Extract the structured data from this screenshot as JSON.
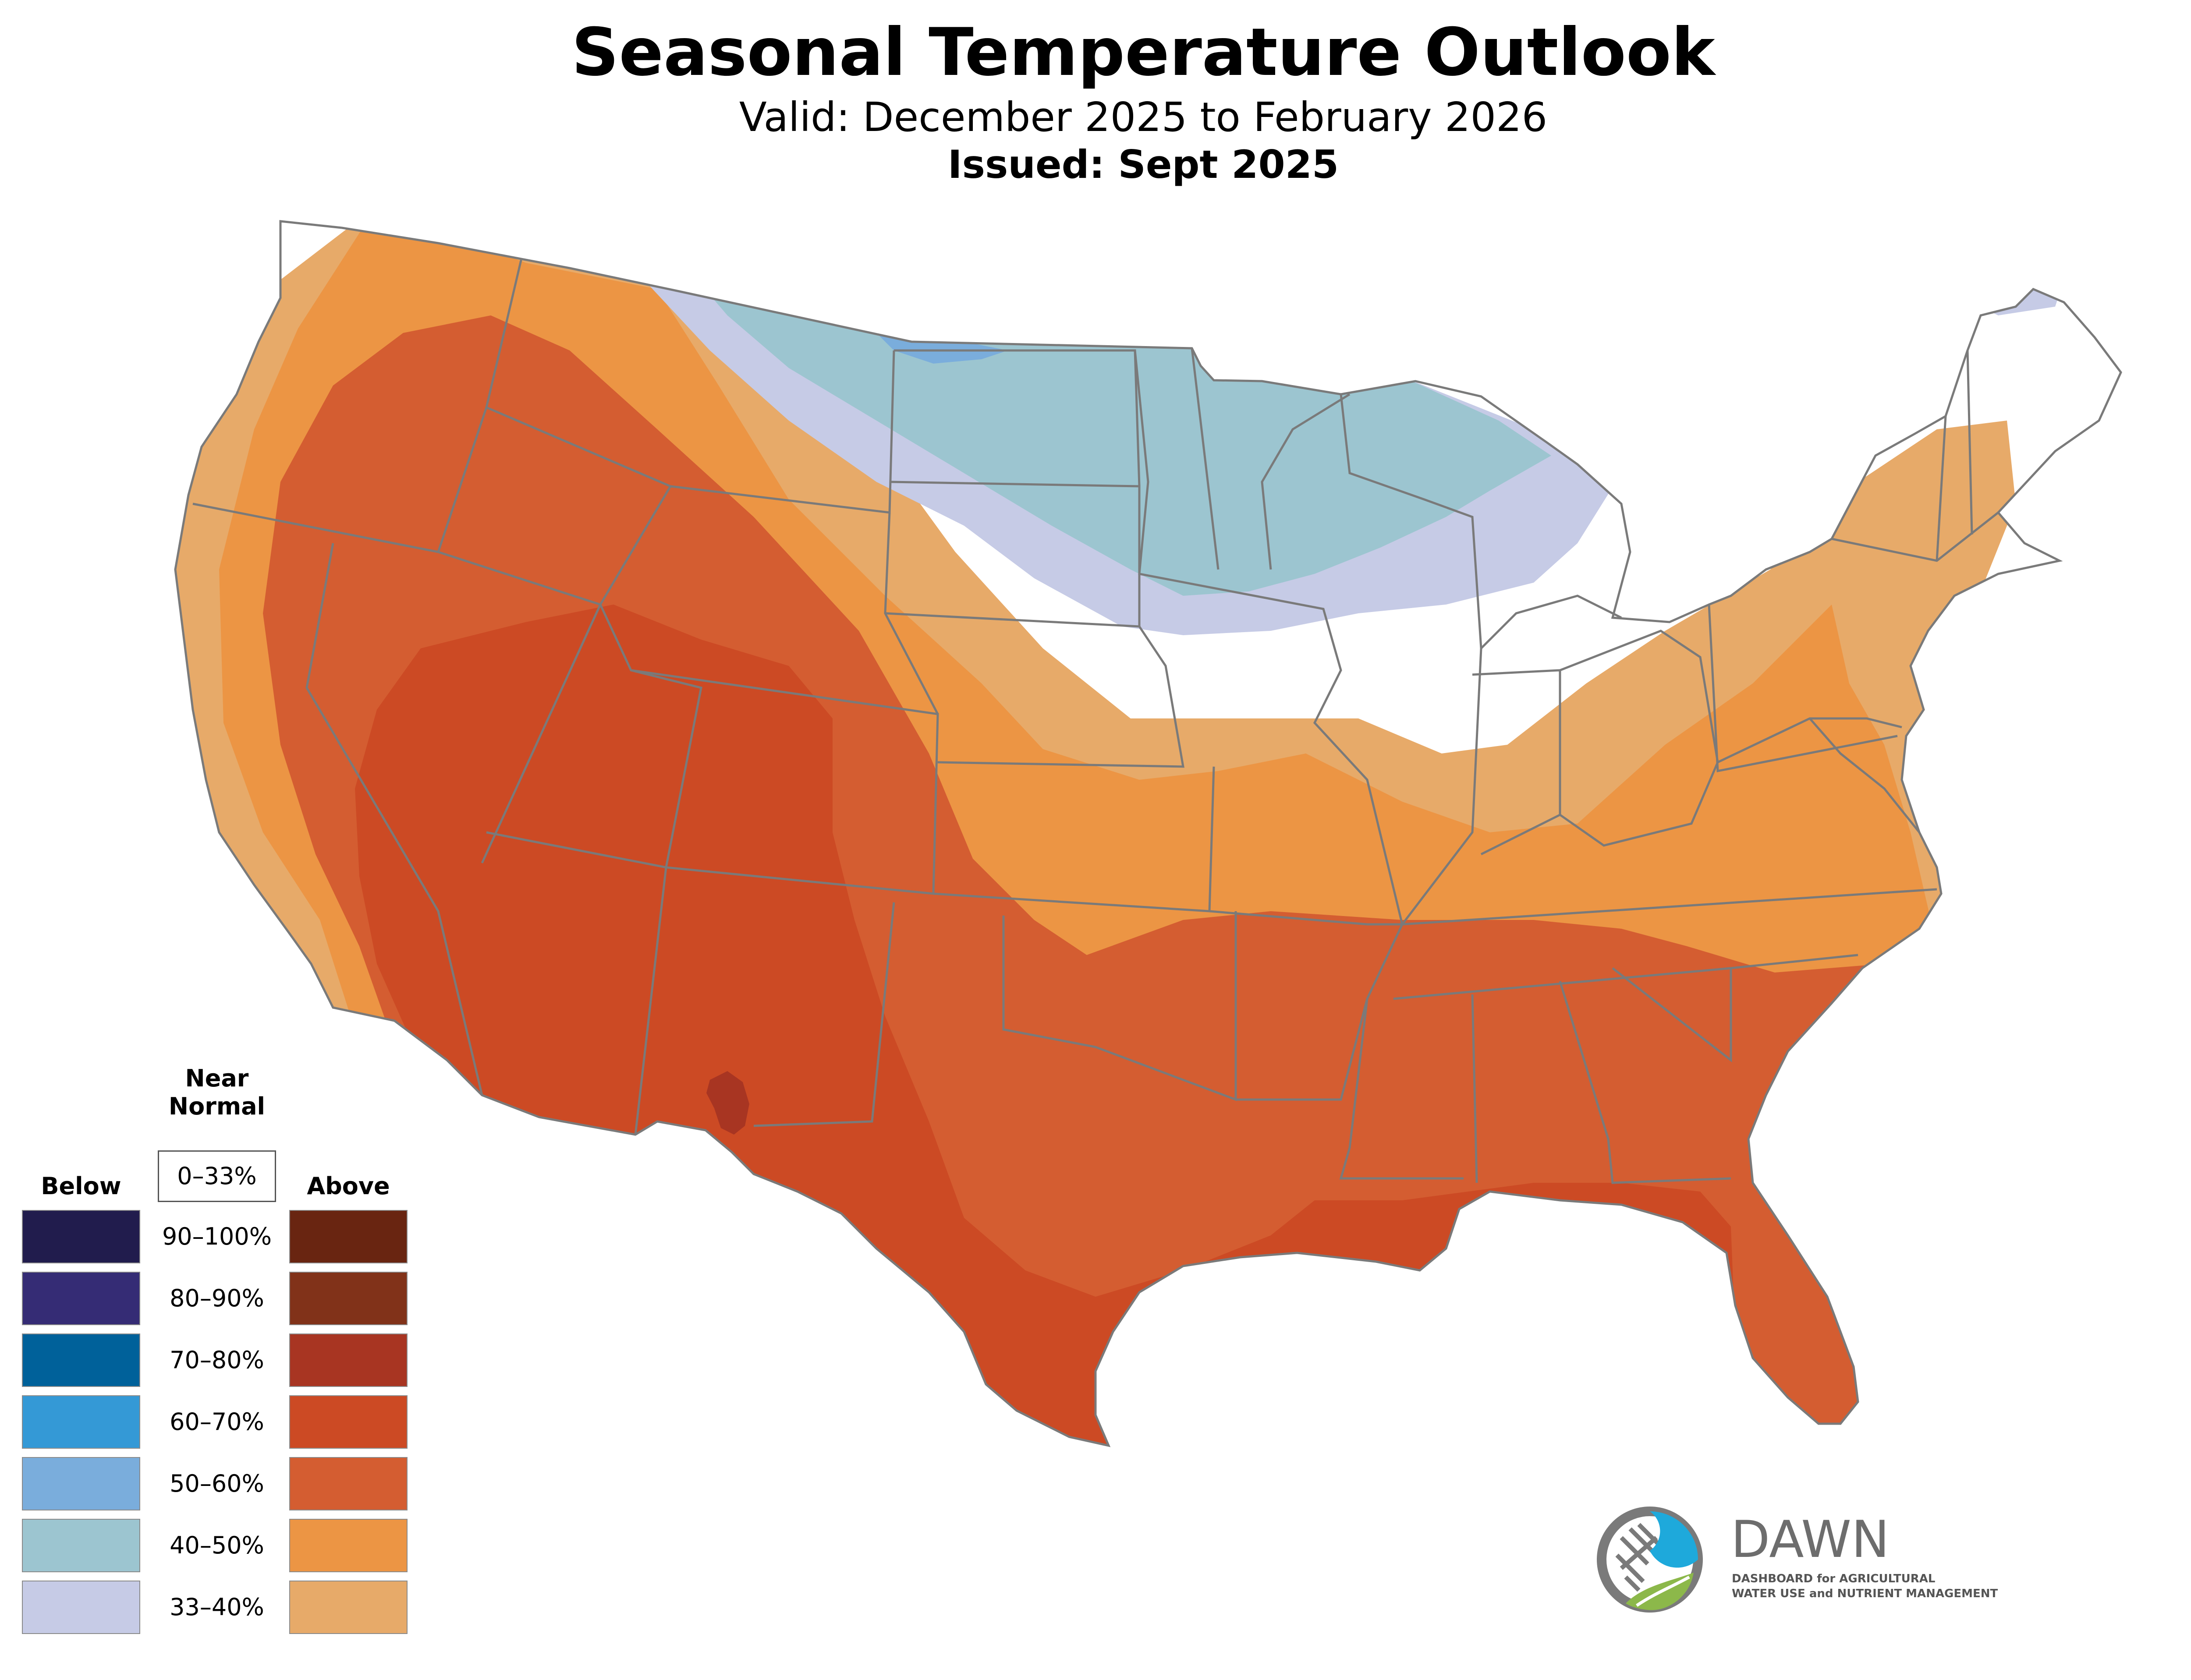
{
  "title": "Seasonal Temperature Outlook",
  "subtitle": "Valid: December 2025 to February 2026",
  "issued": "Issued: Sept 2025",
  "legend": {
    "below_label": "Below",
    "near_normal_label_line1": "Near",
    "near_normal_label_line2": "Normal",
    "above_label": "Above",
    "near_normal_range": "0–33%",
    "ranges": [
      "90–100%",
      "80–90%",
      "70–80%",
      "60–70%",
      "50–60%",
      "40–50%",
      "33–40%"
    ],
    "below_colors": [
      "#211c4d",
      "#352c75",
      "#00619a",
      "#3499d6",
      "#7aaddc",
      "#9cc5d0",
      "#c6cbe6"
    ],
    "above_colors": [
      "#692511",
      "#813219",
      "#a83522",
      "#cc4a24",
      "#d45d31",
      "#ec9544",
      "#e7aa69"
    ]
  },
  "map_colors": {
    "background_land": "#ffffff",
    "borders": "#7a7a7a",
    "above_33_40": "#e7aa69",
    "above_40_50": "#ec9544",
    "above_50_60": "#d45d31",
    "above_60_70": "#cc4a24",
    "above_70_80": "#a83522",
    "below_33_40": "#c6cbe6",
    "below_40_50": "#9cc5d0",
    "below_50_60": "#7aaddc"
  },
  "logo": {
    "name": "DAWN",
    "subtitle_line1": "DASHBOARD for AGRICULTURAL",
    "subtitle_line2": "WATER USE and NUTRIENT MANAGEMENT",
    "blue": "#1ea9db",
    "green": "#8cb84a",
    "gray": "#7a7a7a"
  }
}
